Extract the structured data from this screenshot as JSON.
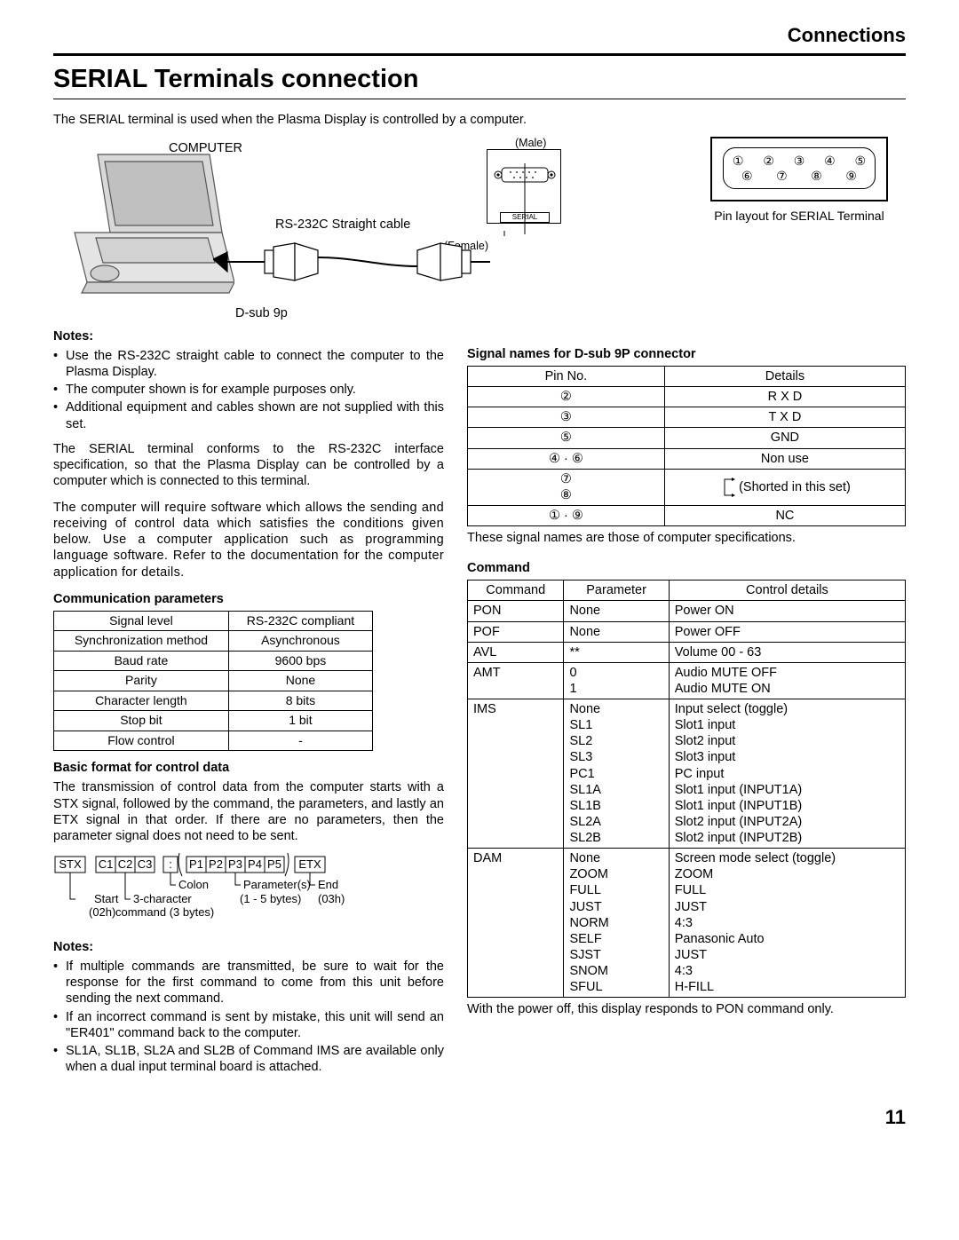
{
  "header": {
    "section": "Connections",
    "title": "SERIAL Terminals connection"
  },
  "intro": "The SERIAL terminal is used when the Plasma Display is controlled by a computer.",
  "diagram": {
    "computer_label": "COMPUTER",
    "male_label": "(Male)",
    "rs_cable_label": "RS-232C Straight cable",
    "female_label": "(Female)",
    "dsub_label": "D-sub 9p",
    "serial_tag": "SERIAL"
  },
  "pinbox": {
    "row1": [
      "①",
      "②",
      "③",
      "④",
      "⑤"
    ],
    "row2": [
      "⑥",
      "⑦",
      "⑧",
      "⑨"
    ],
    "caption": "Pin layout for SERIAL Terminal"
  },
  "notes_top": {
    "heading": "Notes:",
    "items": [
      "Use the RS-232C straight cable to connect the computer to the Plasma Display.",
      "The computer shown is for example purposes only.",
      "Additional equipment and cables shown are not supplied with this set."
    ]
  },
  "para1": "The SERIAL terminal conforms to the RS-232C interface specification, so that the Plasma Display can be controlled by a computer which is connected to this terminal.",
  "para2": "The computer will require software which allows the sending and receiving of control data which satisfies the conditions given below. Use a computer application such as programming language software. Refer to the documentation for the computer application for details.",
  "comm": {
    "heading": "Communication parameters",
    "rows": [
      [
        "Signal level",
        "RS-232C compliant"
      ],
      [
        "Synchronization method",
        "Asynchronous"
      ],
      [
        "Baud rate",
        "9600 bps"
      ],
      [
        "Parity",
        "None"
      ],
      [
        "Character length",
        "8 bits"
      ],
      [
        "Stop bit",
        "1 bit"
      ],
      [
        "Flow control",
        "-"
      ]
    ]
  },
  "basic_format": {
    "heading": "Basic format for control data",
    "body": "The transmission of control data from the computer starts with a STX signal, followed by the command, the parameters, and lastly an ETX signal in that order. If there are no parameters, then the parameter signal does not need to be sent.",
    "tokens": {
      "stx": "STX",
      "c1": "C1",
      "c2": "C2",
      "c3": "C3",
      "colon": ":",
      "p1": "P1",
      "p2": "P2",
      "p3": "P3",
      "p4": "P4",
      "p5": "P5",
      "etx": "ETX",
      "lbl_start": "Start",
      "lbl_start2": "(02h)",
      "lbl_cmd": "3-character",
      "lbl_cmd2": "command (3 bytes)",
      "lbl_colon": "Colon",
      "lbl_param": "Parameter(s)",
      "lbl_param2": "(1 - 5 bytes)",
      "lbl_end": "End",
      "lbl_end2": "(03h)"
    }
  },
  "notes_bottom": {
    "heading": "Notes:",
    "items": [
      "If multiple commands are transmitted, be sure to wait for the response for the first command to come from this unit before sending the next command.",
      "If an incorrect command is sent by mistake, this unit will send an \"ER401\" command back to the computer.",
      "SL1A, SL1B, SL2A and SL2B of Command IMS are available only when a dual input terminal board is attached."
    ]
  },
  "signal": {
    "heading": "Signal names for D-sub 9P connector",
    "header": [
      "Pin No.",
      "Details"
    ],
    "rows": [
      {
        "pin": "②",
        "detail": "R X D"
      },
      {
        "pin": "③",
        "detail": "T X D"
      },
      {
        "pin": "⑤",
        "detail": "GND"
      },
      {
        "pin": "④ · ⑥",
        "detail": "Non use"
      },
      {
        "pin": "⑦\n⑧",
        "detail": "(Shorted in this set)",
        "shorted": true
      },
      {
        "pin": "① · ⑨",
        "detail": "NC"
      }
    ],
    "footer": "These signal names are those of computer specifications."
  },
  "command": {
    "heading": "Command",
    "header": [
      "Command",
      "Parameter",
      "Control details"
    ],
    "rows": [
      {
        "cmd": "PON",
        "params": [
          "None"
        ],
        "details": [
          "Power ON"
        ]
      },
      {
        "cmd": "POF",
        "params": [
          "None"
        ],
        "details": [
          "Power OFF"
        ]
      },
      {
        "cmd": "AVL",
        "params": [
          "**"
        ],
        "details": [
          "Volume 00 - 63"
        ]
      },
      {
        "cmd": "AMT",
        "params": [
          "0",
          "1"
        ],
        "details": [
          "Audio MUTE OFF",
          "Audio MUTE ON"
        ]
      },
      {
        "cmd": "IMS",
        "params": [
          "None",
          "SL1",
          "SL2",
          "SL3",
          "PC1",
          "SL1A",
          "SL1B",
          "SL2A",
          "SL2B"
        ],
        "details": [
          "Input select (toggle)",
          "Slot1 input",
          "Slot2 input",
          "Slot3 input",
          "PC input",
          "Slot1 input (INPUT1A)",
          "Slot1 input (INPUT1B)",
          "Slot2 input (INPUT2A)",
          "Slot2 input (INPUT2B)"
        ]
      },
      {
        "cmd": "DAM",
        "params": [
          "None",
          "ZOOM",
          "FULL",
          "JUST",
          "NORM",
          "SELF",
          "SJST",
          "SNOM",
          "SFUL"
        ],
        "details": [
          "Screen mode select (toggle)",
          "ZOOM",
          "FULL",
          "JUST",
          "4:3",
          "Panasonic Auto",
          "JUST",
          "4:3",
          "H-FILL"
        ]
      }
    ],
    "footer": "With the power off, this display responds to PON command only."
  },
  "page_number": "11"
}
